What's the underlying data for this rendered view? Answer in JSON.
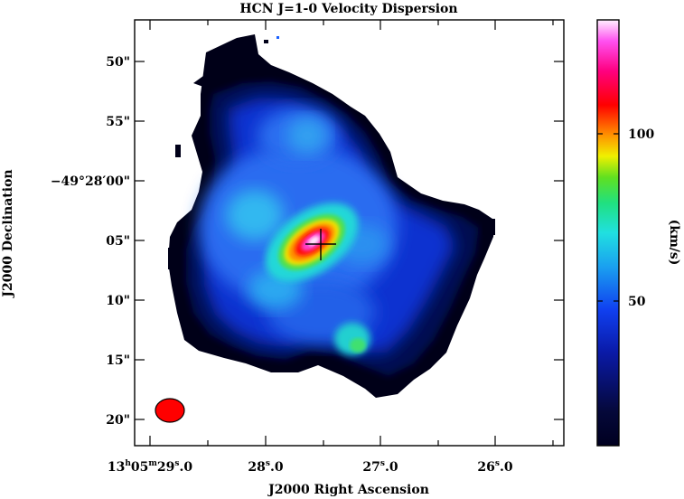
{
  "figure": {
    "title": "HCN J=1-0 Velocity Dispersion",
    "x_axis_label": "J2000 Right Ascension",
    "y_axis_label": "J2000 Declination",
    "x_ticks": [
      {
        "h": "13",
        "m": "05",
        "s": "29",
        "frac": ".0"
      },
      {
        "s": "28",
        "frac": ".0"
      },
      {
        "s": "27",
        "frac": ".0"
      },
      {
        "s": "26",
        "frac": ".0"
      }
    ],
    "y_ticks": [
      "50\"",
      "55\"",
      "−49°28′00\"",
      "05\"",
      "10\"",
      "15\"",
      "20\""
    ],
    "colorbar": {
      "unit_label": "(km/s)",
      "tick_labels": [
        "100",
        "50"
      ]
    }
  },
  "chart_data": {
    "type": "heatmap",
    "title": "HCN J=1-0 Velocity Dispersion",
    "xlabel": "J2000 Right Ascension",
    "ylabel": "J2000 Declination",
    "colorbar_label": "(km/s)",
    "colorbar_ticks": [
      50,
      100
    ],
    "colorbar_range": [
      5,
      140
    ],
    "colormap": "black-blue-cyan-green-yellow-red-magenta-white",
    "x_ticks": [
      "13h05m29.0s",
      "28.0s",
      "27.0s",
      "26.0s"
    ],
    "y_ticks": [
      "50\"",
      "55\"",
      "-49°28'00\"",
      "05\"",
      "10\"",
      "15\"",
      "20\""
    ],
    "peak_value_approx": 135,
    "beam_color": "#ff0000",
    "grid": false
  }
}
